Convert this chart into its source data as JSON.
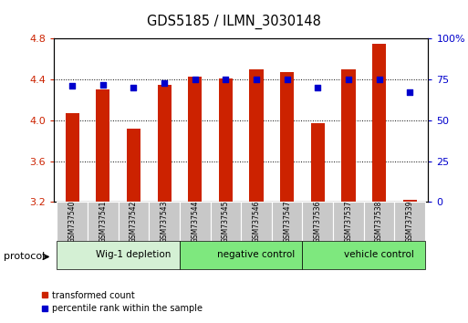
{
  "title": "GDS5185 / ILMN_3030148",
  "samples": [
    "GSM737540",
    "GSM737541",
    "GSM737542",
    "GSM737543",
    "GSM737544",
    "GSM737545",
    "GSM737546",
    "GSM737547",
    "GSM737536",
    "GSM737537",
    "GSM737538",
    "GSM737539"
  ],
  "red_values": [
    4.07,
    4.3,
    3.92,
    4.35,
    4.43,
    4.41,
    4.5,
    4.47,
    3.97,
    4.5,
    4.75,
    3.22
  ],
  "blue_values": [
    71,
    72,
    70,
    73,
    75,
    75,
    75,
    75,
    70,
    75,
    75,
    67
  ],
  "ylim_left": [
    3.2,
    4.8
  ],
  "ylim_right": [
    0,
    100
  ],
  "yticks_left": [
    3.2,
    3.6,
    4.0,
    4.4,
    4.8
  ],
  "yticks_right": [
    0,
    25,
    50,
    75,
    100
  ],
  "groups": [
    {
      "label": "Wig-1 depletion",
      "start": 0,
      "end": 4
    },
    {
      "label": "negative control",
      "start": 4,
      "end": 8
    },
    {
      "label": "vehicle control",
      "start": 8,
      "end": 12
    }
  ],
  "group_colors": [
    "#d4f0d4",
    "#7ee87e",
    "#7ee87e"
  ],
  "protocol_label": "protocol",
  "legend_red_label": "transformed count",
  "legend_blue_label": "percentile rank within the sample",
  "bar_color": "#cc2200",
  "dot_color": "#0000cc",
  "tick_color_left": "#cc2200",
  "tick_color_right": "#0000cc",
  "sample_box_color": "#c8c8c8",
  "bar_width": 0.45
}
